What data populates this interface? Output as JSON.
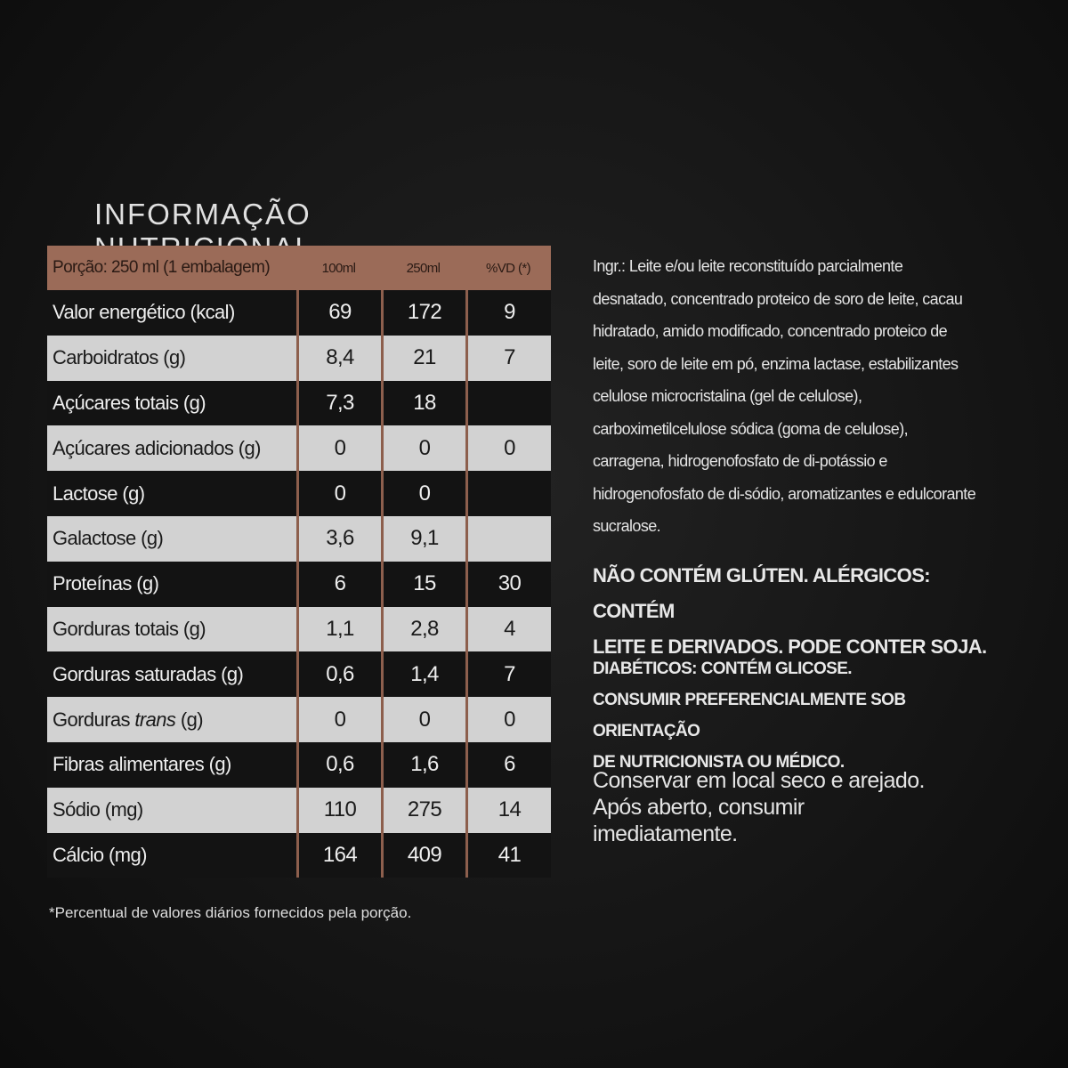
{
  "title": "INFORMAÇÃO NUTRICIONAL",
  "table": {
    "header": [
      "Porção: 250 ml (1 embalagem)",
      "100ml",
      "250ml",
      "%VD (*)"
    ],
    "rows": [
      {
        "label": "Valor energético (kcal)",
        "v100": "69",
        "v250": "172",
        "vd": "9"
      },
      {
        "label": "Carboidratos (g)",
        "v100": "8,4",
        "v250": "21",
        "vd": "7"
      },
      {
        "label": "Açúcares totais (g)",
        "v100": "7,3",
        "v250": "18",
        "vd": ""
      },
      {
        "label": "Açúcares adicionados (g)",
        "v100": "0",
        "v250": "0",
        "vd": "0"
      },
      {
        "label": "Lactose (g)",
        "v100": "0",
        "v250": "0",
        "vd": ""
      },
      {
        "label": "Galactose (g)",
        "v100": "3,6",
        "v250": "9,1",
        "vd": ""
      },
      {
        "label": "Proteínas (g)",
        "v100": "6",
        "v250": "15",
        "vd": "30"
      },
      {
        "label": "Gorduras totais (g)",
        "v100": "1,1",
        "v250": "2,8",
        "vd": "4"
      },
      {
        "label": "Gorduras saturadas (g)",
        "v100": "0,6",
        "v250": "1,4",
        "vd": "7"
      },
      {
        "label": "Gorduras trans (g)",
        "v100": "0",
        "v250": "0",
        "vd": "0"
      },
      {
        "label": "Fibras alimentares (g)",
        "v100": "0,6",
        "v250": "1,6",
        "vd": "6"
      },
      {
        "label": "Sódio (mg)",
        "v100": "110",
        "v250": "275",
        "vd": "14"
      },
      {
        "label": "Cálcio (mg)",
        "v100": "164",
        "v250": "409",
        "vd": "41"
      }
    ]
  },
  "footnote": "*Percentual de valores diários fornecidos pela porção.",
  "ingredients": [
    "Ingr.: Leite e/ou leite reconstituído parcialmente",
    "desnatado, concentrado proteico de soro de leite, cacau",
    "hidratado, amido modificado, concentrado proteico de",
    "leite, soro de leite em pó, enzima lactase, estabilizantes",
    "celulose microcristalina (gel de celulose),",
    "carboximetilcelulose sódica (goma de celulose),",
    "carragena, hidrogenofosfato de di-potássio e",
    "hidrogenofosfato de di-sódio, aromatizantes e edulcorante",
    "sucralose."
  ],
  "allergens": [
    "NÃO CONTÉM GLÚTEN. ALÉRGICOS: CONTÉM",
    "LEITE E DERIVADOS. PODE CONTER SOJA."
  ],
  "diabetics": [
    "DIABÉTICOS: CONTÉM GLICOSE.",
    "CONSUMIR PREFERENCIALMENTE SOB ORIENTAÇÃO",
    "DE NUTRICIONISTA OU MÉDICO."
  ],
  "storage": [
    "Conservar em local seco e arejado.",
    "Após aberto, consumir",
    "imediatamente."
  ],
  "colors": {
    "header_bg": "#9b6b58",
    "light_row": "#d2d2d2",
    "dark_row": "#131313",
    "separator": "#8d5f4d"
  }
}
